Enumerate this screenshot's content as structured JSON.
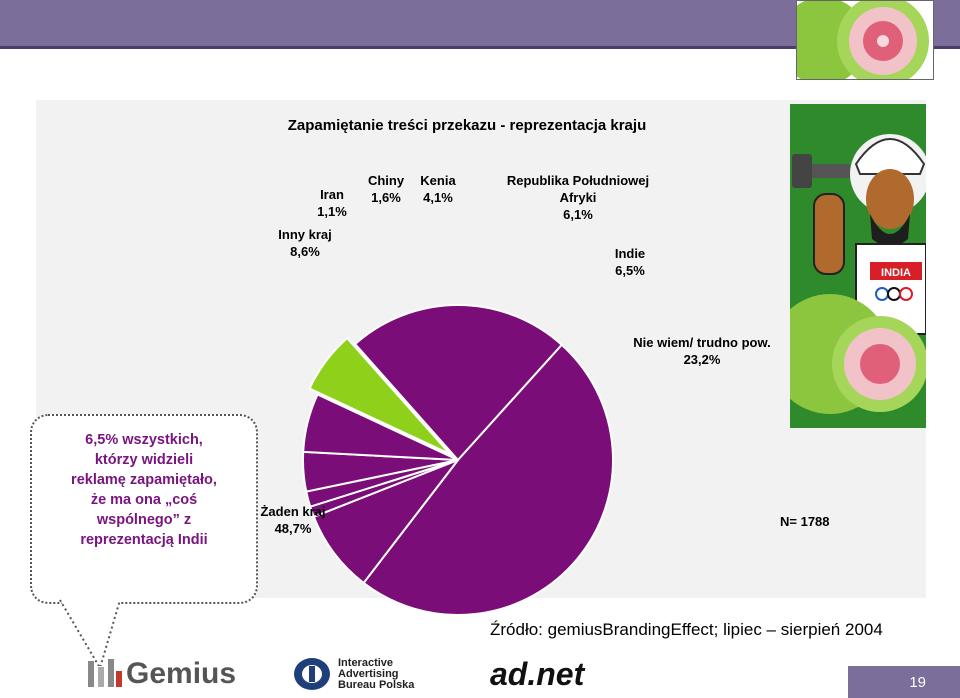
{
  "slide": {
    "page_number": "19",
    "source": "Źródło: gemiusBrandingEffect; lipiec – sierpień 2004"
  },
  "callout": {
    "lines": [
      "6,5% wszystkich,",
      "którzy widzieli",
      "reklamę zapamiętało,",
      "że ma ona „coś",
      "wspólnego” z",
      "reprezentacją Indii"
    ]
  },
  "logos": {
    "gemius": "Gemius",
    "iab": [
      "Interactive",
      "Advertising",
      "Bureau Polska"
    ],
    "adnet": "ad.net"
  },
  "side_image": {
    "badge": "INDIA"
  },
  "chart_data": {
    "type": "pie",
    "title": "Zapamiętanie treści przekazu - reprezentacja kraju",
    "n_label": "N= 1788",
    "slices": [
      {
        "label": "Indie",
        "value": 6.5,
        "display": "6,5%",
        "color": "#8fd11a"
      },
      {
        "label": "Nie wiem/ trudno pow.",
        "value": 23.2,
        "display": "23,2%",
        "color": "#7a0d78"
      },
      {
        "label": "Żaden kraj",
        "value": 48.7,
        "display": "48,7%",
        "color": "#7a0d78"
      },
      {
        "label": "Inny kraj",
        "value": 8.6,
        "display": "8,6%",
        "color": "#7a0d78"
      },
      {
        "label": "Iran",
        "value": 1.1,
        "display": "1,1%",
        "color": "#7a0d78"
      },
      {
        "label": "Chiny",
        "value": 1.6,
        "display": "1,6%",
        "color": "#7a0d78"
      },
      {
        "label": "Kenia",
        "value": 4.1,
        "display": "4,1%",
        "color": "#7a0d78"
      },
      {
        "label": "Republika Południowej Afryki",
        "value": 6.1,
        "display": "6,1%",
        "color": "#7a0d78"
      }
    ],
    "label_lines": {
      "Republika Południowej Afryki": [
        "Republika Południowej",
        "Afryki"
      ]
    }
  }
}
